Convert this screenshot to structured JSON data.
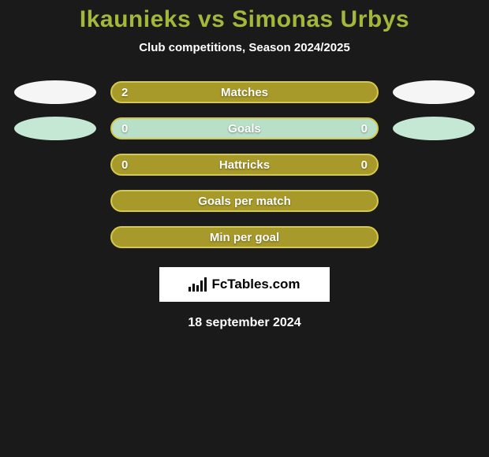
{
  "title": "Ikaunieks vs Simonas Urbys",
  "subtitle": "Club competitions, Season 2024/2025",
  "colors": {
    "background": "#1a1a1a",
    "title_color": "#a3b83a",
    "text_color": "#ffffff",
    "oval_light": "#f5f5f5",
    "oval_mint": "#c5e8d5",
    "bar_olive_fill": "#a89a2a",
    "bar_olive_border": "#d4c94a",
    "bar_mint_fill": "#b8e0c8",
    "bar_mint_border": "#d4c94a"
  },
  "stats": [
    {
      "label": "Matches",
      "left_value": "2",
      "right_value": "",
      "fill": "#a89a2a",
      "border": "#d4c94a",
      "left_oval": "#f5f5f5",
      "right_oval": "#f5f5f5"
    },
    {
      "label": "Goals",
      "left_value": "0",
      "right_value": "0",
      "fill": "#b8e0c8",
      "border": "#d4c94a",
      "left_oval": "#c5e8d5",
      "right_oval": "#c5e8d5"
    },
    {
      "label": "Hattricks",
      "left_value": "0",
      "right_value": "0",
      "fill": "#a89a2a",
      "border": "#d4c94a",
      "left_oval": "",
      "right_oval": ""
    },
    {
      "label": "Goals per match",
      "left_value": "",
      "right_value": "",
      "fill": "#a89a2a",
      "border": "#d4c94a",
      "left_oval": "",
      "right_oval": ""
    },
    {
      "label": "Min per goal",
      "left_value": "",
      "right_value": "",
      "fill": "#a89a2a",
      "border": "#d4c94a",
      "left_oval": "",
      "right_oval": ""
    }
  ],
  "logo_text": "FcTables.com",
  "date": "18 september 2024"
}
